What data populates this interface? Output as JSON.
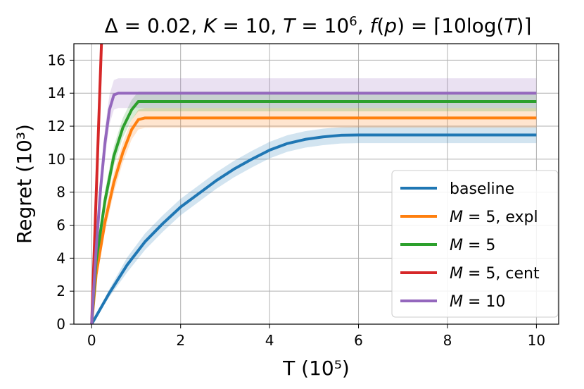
{
  "chart_data": {
    "type": "line",
    "title": "Δ = 0.02, K = 10, T = 10⁶, f(p) = ⌈10log(T)⌉",
    "title_parts": [
      {
        "t": "Δ",
        "i": false
      },
      {
        "t": " = 0.02, ",
        "i": false
      },
      {
        "t": "K",
        "i": true
      },
      {
        "t": " = 10, ",
        "i": false
      },
      {
        "t": "T",
        "i": true
      },
      {
        "t": " = 10",
        "i": false
      },
      {
        "t": "6",
        "i": false,
        "sup": true
      },
      {
        "t": ", ",
        "i": false
      },
      {
        "t": "f",
        "i": true
      },
      {
        "t": "(",
        "i": false
      },
      {
        "t": "p",
        "i": true
      },
      {
        "t": ") = ⌈10log(",
        "i": false
      },
      {
        "t": "T",
        "i": true
      },
      {
        "t": ")⌉",
        "i": false
      }
    ],
    "xlabel": "T (10⁵)",
    "ylabel": "Regret (10³)",
    "xlim": [
      -0.4,
      10.5
    ],
    "ylim": [
      0,
      17
    ],
    "xticks": [
      0,
      2,
      4,
      6,
      8,
      10
    ],
    "yticks": [
      0,
      2,
      4,
      6,
      8,
      10,
      12,
      14,
      16
    ],
    "grid": true,
    "legend_position": "lower-right",
    "series": [
      {
        "name": "baseline",
        "color": "#1f77b4",
        "x": [
          0,
          0.4,
          0.8,
          1.2,
          1.6,
          2.0,
          2.4,
          2.8,
          3.2,
          3.6,
          4.0,
          4.4,
          4.8,
          5.2,
          5.6,
          6.0,
          7.0,
          8.0,
          9.0,
          10.0
        ],
        "y": [
          0,
          1.9,
          3.6,
          5.0,
          6.1,
          7.1,
          7.9,
          8.7,
          9.4,
          10.0,
          10.55,
          10.95,
          11.2,
          11.35,
          11.45,
          11.47,
          11.47,
          11.47,
          11.47,
          11.47
        ],
        "band": 0.5
      },
      {
        "name": "M = 5, expl",
        "label_parts": [
          {
            "t": "M",
            "i": true
          },
          {
            "t": " = 5, expl",
            "i": false
          }
        ],
        "color": "#ff7f0e",
        "x": [
          0,
          0.1,
          0.3,
          0.5,
          0.7,
          0.9,
          1.05,
          1.2,
          2.0,
          4.0,
          6.0,
          8.0,
          10.0
        ],
        "y": [
          0,
          3.0,
          6.2,
          8.6,
          10.4,
          11.8,
          12.4,
          12.5,
          12.5,
          12.5,
          12.5,
          12.5,
          12.5
        ],
        "band": 0.6
      },
      {
        "name": "M = 5",
        "label_parts": [
          {
            "t": "M",
            "i": true
          },
          {
            "t": " = 5",
            "i": false
          }
        ],
        "color": "#2ca02c",
        "x": [
          0,
          0.1,
          0.3,
          0.5,
          0.7,
          0.9,
          1.05,
          1.2,
          2.0,
          4.0,
          6.0,
          8.0,
          10.0
        ],
        "y": [
          0,
          3.8,
          7.5,
          10.2,
          11.9,
          13.0,
          13.5,
          13.5,
          13.5,
          13.5,
          13.5,
          13.5,
          13.5
        ],
        "band": 0.6
      },
      {
        "name": "M = 5, cent",
        "label_parts": [
          {
            "t": "M",
            "i": true
          },
          {
            "t": " = 5, cent",
            "i": false
          }
        ],
        "color": "#d62728",
        "x": [
          0,
          0.22
        ],
        "y": [
          0,
          17.0
        ],
        "band": 0
      },
      {
        "name": "M = 10",
        "label_parts": [
          {
            "t": "M",
            "i": true
          },
          {
            "t": " = 10",
            "i": false
          }
        ],
        "color": "#9467bd",
        "x": [
          0,
          0.1,
          0.2,
          0.3,
          0.4,
          0.5,
          0.6,
          0.8,
          1.0,
          2.0,
          4.0,
          6.0,
          8.0,
          10.0
        ],
        "y": [
          0,
          4.5,
          8.2,
          11.0,
          13.0,
          13.9,
          14.0,
          14.0,
          14.0,
          14.0,
          14.0,
          14.0,
          14.0,
          14.0
        ],
        "band": 0.9
      }
    ]
  }
}
